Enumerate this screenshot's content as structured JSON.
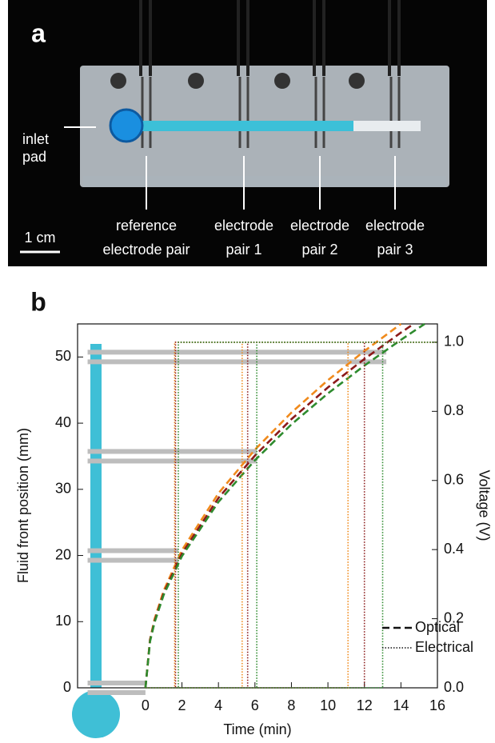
{
  "panel_a": {
    "label": "a",
    "inlet_label": [
      "inlet",
      "pad"
    ],
    "electrode_labels": [
      [
        "reference",
        "electrode pair"
      ],
      [
        "electrode",
        "pair 1"
      ],
      [
        "electrode",
        "pair 2"
      ],
      [
        "electrode",
        "pair 3"
      ]
    ],
    "scale_label": "1 cm"
  },
  "chart_data": {
    "type": "line",
    "panel_label": "b",
    "x_label": "Time (min)",
    "y_label": "Fluid front position (mm)",
    "y2_label": "Voltage (V)",
    "xlim": [
      -3.72,
      16
    ],
    "xticks": [
      0,
      2,
      4,
      6,
      8,
      10,
      12,
      14,
      16
    ],
    "ylim": [
      0,
      55
    ],
    "yticks": [
      0,
      10,
      20,
      30,
      40,
      50
    ],
    "y2lim": [
      0,
      1.053
    ],
    "y2ticks": [
      {
        "value": 0,
        "label": "0.0"
      },
      0.2,
      0.4,
      0.6,
      0.8,
      {
        "value": 1,
        "label": "1.0"
      }
    ],
    "legend": [
      {
        "label": "Optical",
        "style": "dashed"
      },
      {
        "label": "Electrical",
        "style": "dotted"
      }
    ],
    "electrode_positions": [
      0,
      20,
      35,
      50
    ],
    "electrode_bar_ends": [
      0,
      1.8,
      6.1,
      13.2
    ],
    "series": [
      {
        "color": "#f08a1c",
        "style": "dashed",
        "x": [
          0,
          0.25,
          0.5,
          1,
          2,
          4,
          6,
          8,
          10,
          12,
          14
        ],
        "values": [
          0,
          7.3,
          10.4,
          14.7,
          20.8,
          29.4,
          36.0,
          41.6,
          46.5,
          50.9,
          55
        ]
      },
      {
        "color": "#8b1a1a",
        "style": "dashed",
        "x": [
          0,
          0.25,
          0.5,
          1,
          2,
          4,
          6,
          8,
          10,
          12,
          14,
          14.7
        ],
        "values": [
          0,
          7.2,
          10.1,
          14.35,
          20.3,
          28.7,
          35.1,
          40.6,
          45.4,
          49.7,
          53.7,
          55
        ]
      },
      {
        "color": "#2e8b2e",
        "style": "dashed",
        "x": [
          0,
          0.25,
          0.5,
          1,
          2,
          4,
          6,
          8,
          10,
          12,
          14,
          15.3
        ],
        "values": [
          0,
          7.0,
          9.9,
          14.06,
          19.9,
          28.1,
          34.4,
          39.8,
          44.5,
          48.7,
          52.6,
          55
        ]
      },
      {
        "color": "#f08a1c",
        "style": "dotted",
        "axis": "y2",
        "x": [
          0,
          1.6,
          1.6,
          16,
          null,
          0,
          5.3,
          5.3,
          16,
          null,
          0,
          11.1,
          11.1,
          16
        ],
        "values": [
          0,
          0,
          1,
          1,
          null,
          0,
          0,
          1,
          1,
          null,
          0,
          0,
          1,
          1
        ]
      },
      {
        "color": "#8b1a1a",
        "style": "dotted",
        "axis": "y2",
        "x": [
          0,
          1.65,
          1.65,
          16,
          null,
          0,
          5.6,
          5.6,
          16,
          null,
          0,
          12.0,
          12.0,
          16
        ],
        "values": [
          0,
          0,
          1,
          1,
          null,
          0,
          0,
          1,
          1,
          null,
          0,
          0,
          1,
          1
        ]
      },
      {
        "color": "#2e8b2e",
        "style": "dotted",
        "axis": "y2",
        "x": [
          0,
          1.8,
          1.8,
          16,
          null,
          0,
          6.1,
          6.1,
          16,
          null,
          0,
          13.0,
          13.0,
          16
        ],
        "values": [
          0,
          0,
          1,
          1,
          null,
          0,
          0,
          1,
          1,
          null,
          0,
          0,
          1,
          1
        ]
      }
    ]
  }
}
